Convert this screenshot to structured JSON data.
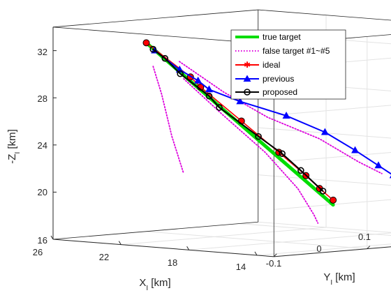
{
  "chart_data": {
    "type": "line",
    "axes": {
      "x": {
        "label_main": "X",
        "label_sub": "I",
        "label_unit": " [km]",
        "ticks": [
          "26",
          "22",
          "18",
          "14"
        ]
      },
      "y": {
        "label_main": "Y",
        "label_sub": "I",
        "label_unit": " [km]",
        "ticks": [
          "-0.1",
          "0",
          "0.1"
        ]
      },
      "z": {
        "label_main": "-Z",
        "label_sub": "I",
        "label_unit": " [km]",
        "ticks": [
          "32",
          "28",
          "24",
          "20",
          "16"
        ]
      }
    },
    "grid": true,
    "legend": {
      "placement": "top-right",
      "entries": [
        {
          "label": "true target",
          "color": "#00dd00",
          "style": "thick-solid",
          "marker": "none"
        },
        {
          "label": "false target #1~#5",
          "color": "#dd00dd",
          "style": "dotted",
          "marker": "none"
        },
        {
          "label": "ideal",
          "color": "#ff0000",
          "style": "solid",
          "marker": "asterisk"
        },
        {
          "label": "previous",
          "color": "#0000ff",
          "style": "solid",
          "marker": "triangle"
        },
        {
          "label": "proposed",
          "color": "#000000",
          "style": "solid",
          "marker": "circle"
        }
      ]
    },
    "series": [
      {
        "name": "true target",
        "color": "#00dd00",
        "marker": "none",
        "points": [
          [
            26.0,
            0.0,
            32.0
          ],
          [
            15.0,
            0.0,
            19.5
          ]
        ]
      },
      {
        "name": "false target #1",
        "color": "#dd00dd",
        "marker": "none",
        "points": [
          [
            24.5,
            -0.02,
            30.3
          ],
          [
            24.0,
            -0.02,
            28.0
          ],
          [
            23.4,
            -0.02,
            24.5
          ],
          [
            22.7,
            -0.02,
            21.4
          ]
        ]
      },
      {
        "name": "false target #2",
        "color": "#dd00dd",
        "marker": "none",
        "points": [
          [
            24.6,
            0.01,
            30.5
          ],
          [
            22.8,
            0.025,
            28.0
          ],
          [
            20.5,
            0.03,
            26.1
          ],
          [
            18.0,
            0.04,
            24.5
          ],
          [
            15.7,
            0.04,
            22.8
          ],
          [
            14.6,
            0.045,
            21.9
          ]
        ]
      },
      {
        "name": "false target #3",
        "color": "#dd00dd",
        "marker": "none",
        "points": [
          [
            23.8,
            0.0,
            29.2
          ],
          [
            21.5,
            0.0,
            26.4
          ],
          [
            19.0,
            0.0,
            23.5
          ],
          [
            16.8,
            -0.005,
            20.7
          ],
          [
            15.3,
            -0.015,
            18.7
          ],
          [
            14.8,
            -0.02,
            18.1
          ]
        ]
      },
      {
        "name": "false target #4",
        "color": "#dd00dd",
        "marker": "none",
        "points": [
          [
            23.8,
            0.002,
            29.3
          ],
          [
            21.0,
            0.002,
            25.9
          ],
          [
            18.0,
            0.002,
            22.3
          ],
          [
            16.0,
            0.002,
            20.0
          ],
          [
            15.2,
            0.002,
            19.0
          ]
        ]
      },
      {
        "name": "false target #5",
        "color": "#dd00dd",
        "marker": "none",
        "points": [
          [
            24.0,
            0.003,
            29.6
          ],
          [
            21.0,
            0.003,
            26.0
          ],
          [
            18.0,
            0.003,
            22.4
          ],
          [
            16.0,
            0.003,
            20.0
          ],
          [
            15.2,
            0.003,
            19.1
          ]
        ]
      },
      {
        "name": "ideal",
        "color": "#ff0000",
        "marker": "circle-red",
        "points": [
          [
            26.0,
            0.0,
            32.0
          ],
          [
            23.4,
            0.0,
            29.4
          ],
          [
            22.8,
            0.0,
            28.6
          ],
          [
            20.4,
            0.0,
            26.0
          ],
          [
            18.2,
            0.0,
            23.6
          ],
          [
            16.6,
            0.0,
            21.8
          ],
          [
            15.8,
            0.0,
            20.8
          ],
          [
            15.0,
            0.0,
            19.9
          ]
        ]
      },
      {
        "name": "previous",
        "color": "#0000ff",
        "marker": "triangle",
        "points": [
          [
            25.5,
            0.0,
            31.4
          ],
          [
            24.2,
            0.003,
            29.9
          ],
          [
            23.5,
            0.01,
            29.0
          ],
          [
            23.4,
            0.02,
            28.2
          ],
          [
            22.4,
            0.035,
            27.2
          ],
          [
            20.5,
            0.05,
            26.1
          ],
          [
            18.5,
            0.055,
            24.9
          ],
          [
            17.0,
            0.06,
            23.5
          ],
          [
            15.9,
            0.065,
            22.3
          ],
          [
            15.3,
            0.07,
            21.5
          ],
          [
            14.8,
            0.075,
            20.8
          ],
          [
            14.3,
            0.085,
            20.1
          ],
          [
            14.0,
            0.1,
            19.6
          ]
        ]
      },
      {
        "name": "proposed",
        "color": "#000000",
        "marker": "circle",
        "points": [
          [
            25.6,
            0.0,
            31.5
          ],
          [
            24.9,
            0.0,
            30.8
          ],
          [
            24.0,
            0.0,
            29.6
          ],
          [
            22.3,
            0.0,
            27.9
          ],
          [
            21.7,
            0.0,
            27.0
          ],
          [
            19.4,
            0.0,
            24.8
          ],
          [
            18.0,
            0.0,
            23.5
          ],
          [
            16.9,
            0.0,
            22.2
          ],
          [
            15.6,
            0.0,
            20.6
          ]
        ]
      }
    ]
  }
}
